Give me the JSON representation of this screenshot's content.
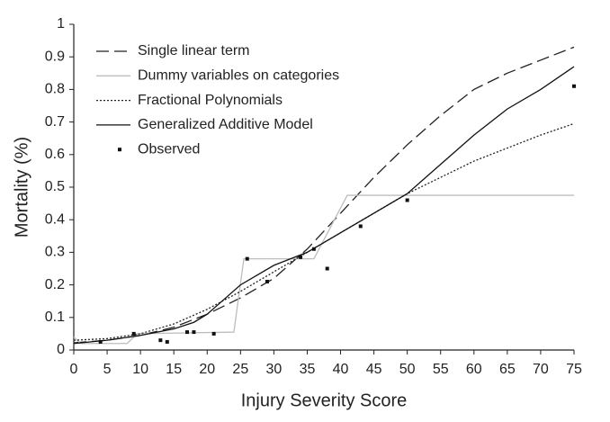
{
  "chart_data": {
    "type": "line",
    "x_label": "Injury Severity Score",
    "y_label": "Mortality (%)",
    "xlim": [
      0,
      75
    ],
    "xticks": [
      0,
      5,
      10,
      15,
      20,
      25,
      30,
      35,
      40,
      45,
      50,
      55,
      60,
      65,
      70,
      75
    ],
    "ylim": [
      0,
      1
    ],
    "yticks": [
      0,
      0.1,
      0.2,
      0.3,
      0.4,
      0.5,
      0.6,
      0.7,
      0.8,
      0.9,
      1
    ],
    "legend": "upper-left",
    "series": [
      {
        "name": "Single linear term",
        "color": "#222222",
        "style": "dashed",
        "x": [
          0,
          5,
          10,
          15,
          20,
          25,
          30,
          35,
          40,
          45,
          50,
          55,
          60,
          65,
          70,
          75
        ],
        "values": [
          0.022,
          0.03,
          0.045,
          0.07,
          0.11,
          0.16,
          0.22,
          0.31,
          0.42,
          0.53,
          0.63,
          0.72,
          0.8,
          0.85,
          0.89,
          0.93
        ]
      },
      {
        "name": "Dummy variables on categories",
        "color": "#bdbdbd",
        "style": "solid",
        "x": [
          0,
          1,
          8,
          9.5,
          24,
          25.5,
          36,
          41,
          75
        ],
        "values": [
          0.04,
          0.02,
          0.02,
          0.05,
          0.055,
          0.28,
          0.28,
          0.475,
          0.475
        ]
      },
      {
        "name": "Fractional Polynomials",
        "color": "#222222",
        "style": "dotted",
        "x": [
          0,
          5,
          10,
          15,
          20,
          25,
          30,
          35,
          40,
          45,
          50,
          55,
          60,
          65,
          70,
          75
        ],
        "values": [
          0.03,
          0.035,
          0.05,
          0.08,
          0.125,
          0.18,
          0.24,
          0.3,
          0.36,
          0.42,
          0.48,
          0.53,
          0.58,
          0.62,
          0.66,
          0.695
        ]
      },
      {
        "name": "Generalized Additive Model",
        "color": "#111111",
        "style": "solid",
        "x": [
          0,
          5,
          10,
          15,
          18,
          20,
          25,
          30,
          35,
          40,
          45,
          50,
          55,
          60,
          65,
          70,
          75
        ],
        "values": [
          0.02,
          0.03,
          0.045,
          0.065,
          0.085,
          0.11,
          0.2,
          0.26,
          0.3,
          0.36,
          0.42,
          0.48,
          0.57,
          0.66,
          0.74,
          0.8,
          0.87
        ]
      },
      {
        "name": "Observed",
        "color": "#111111",
        "style": "marker",
        "x": [
          4,
          9,
          13,
          14,
          17,
          18,
          21,
          26,
          29,
          34,
          36,
          38,
          43,
          50,
          75
        ],
        "values": [
          0.025,
          0.05,
          0.03,
          0.025,
          0.055,
          0.055,
          0.05,
          0.28,
          0.21,
          0.285,
          0.31,
          0.25,
          0.38,
          0.46,
          0.81
        ]
      }
    ]
  }
}
